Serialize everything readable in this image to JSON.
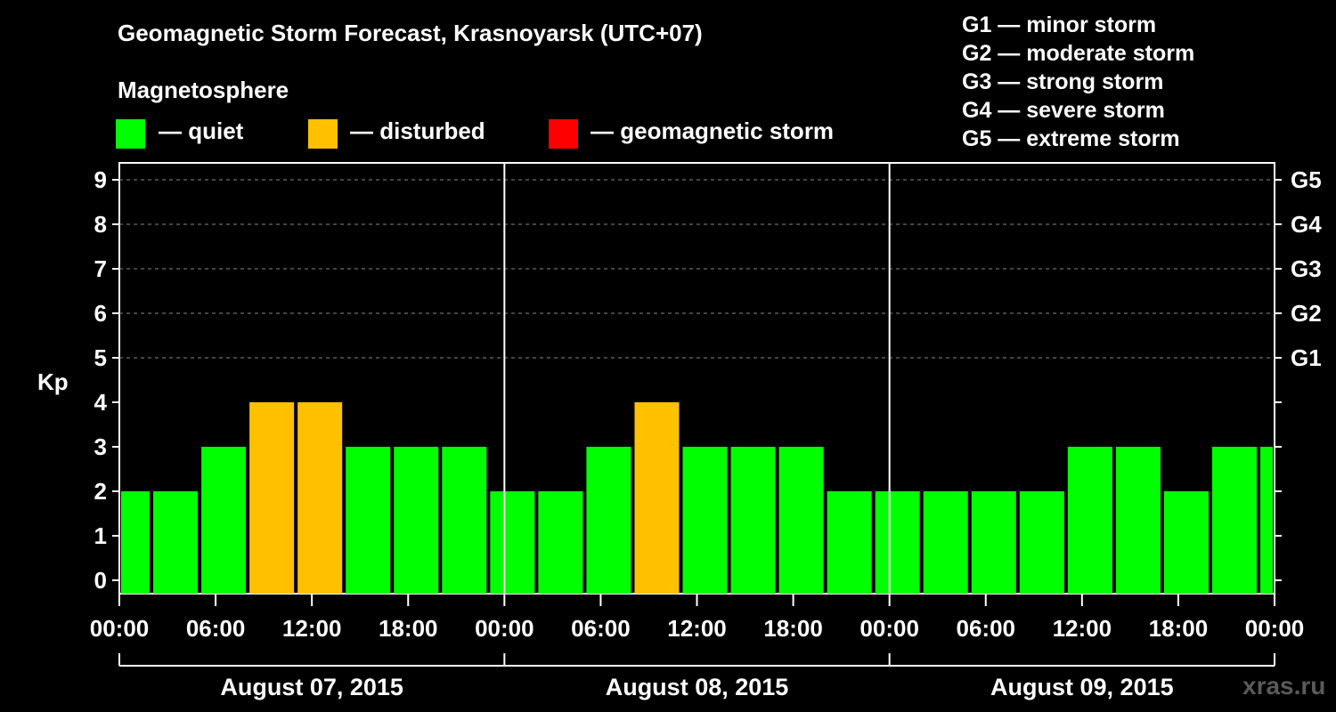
{
  "title": "Geomagnetic Storm Forecast, Krasnoyarsk (UTC+07)",
  "legend": {
    "heading": "Magnetosphere",
    "items": [
      {
        "label": "— quiet",
        "color": "#00ff00"
      },
      {
        "label": "— disturbed",
        "color": "#ffc000"
      },
      {
        "label": "— geomagnetic storm",
        "color": "#ff0000"
      }
    ]
  },
  "gscale": [
    "G1 — minor storm",
    "G2 — moderate storm",
    "G3 — strong storm",
    "G4 — severe storm",
    "G5 — extreme storm"
  ],
  "watermark": "xras.ru",
  "chart_data": {
    "type": "bar",
    "ylabel": "Kp",
    "ylim": [
      0,
      9
    ],
    "yticks": [
      "0",
      "1",
      "2",
      "3",
      "4",
      "5",
      "6",
      "7",
      "8",
      "9"
    ],
    "right_labels": [
      {
        "kp": 5,
        "label": "G1"
      },
      {
        "kp": 6,
        "label": "G2"
      },
      {
        "kp": 7,
        "label": "G3"
      },
      {
        "kp": 8,
        "label": "G4"
      },
      {
        "kp": 9,
        "label": "G5"
      }
    ],
    "xtick_labels": [
      "00:00",
      "06:00",
      "12:00",
      "18:00",
      "00:00",
      "06:00",
      "12:00",
      "18:00",
      "00:00",
      "06:00",
      "12:00",
      "18:00",
      "00:00"
    ],
    "days": [
      "August 07, 2015",
      "August 08, 2015",
      "August 09, 2015"
    ],
    "interval_hours": 3,
    "first_bar_start_hour": -1,
    "values": [
      2,
      2,
      3,
      4,
      4,
      3,
      3,
      3,
      2,
      2,
      3,
      4,
      3,
      3,
      3,
      2,
      2,
      2,
      2,
      2,
      3,
      3,
      2,
      3,
      3
    ],
    "colors": {
      "quiet": "#00ff00",
      "disturbed": "#ffc000",
      "storm": "#ff0000"
    }
  }
}
